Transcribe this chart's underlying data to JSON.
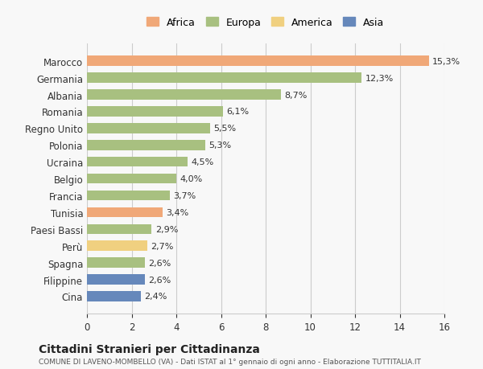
{
  "categories": [
    "Cina",
    "Filippine",
    "Spagna",
    "Perù",
    "Paesi Bassi",
    "Tunisia",
    "Francia",
    "Belgio",
    "Ucraina",
    "Polonia",
    "Regno Unito",
    "Romania",
    "Albania",
    "Germania",
    "Marocco"
  ],
  "values": [
    2.4,
    2.6,
    2.6,
    2.7,
    2.9,
    3.4,
    3.7,
    4.0,
    4.5,
    5.3,
    5.5,
    6.1,
    8.7,
    12.3,
    15.3
  ],
  "labels": [
    "2,4%",
    "2,6%",
    "2,6%",
    "2,7%",
    "2,9%",
    "3,4%",
    "3,7%",
    "4,0%",
    "4,5%",
    "5,3%",
    "5,5%",
    "6,1%",
    "8,7%",
    "12,3%",
    "15,3%"
  ],
  "colors": [
    "#6688bb",
    "#6688bb",
    "#a8c080",
    "#f0d080",
    "#a8c080",
    "#f0a878",
    "#a8c080",
    "#a8c080",
    "#a8c080",
    "#a8c080",
    "#a8c080",
    "#a8c080",
    "#a8c080",
    "#a8c080",
    "#f0a878"
  ],
  "continent": [
    "Asia",
    "Asia",
    "Europa",
    "America",
    "Europa",
    "Africa",
    "Europa",
    "Europa",
    "Europa",
    "Europa",
    "Europa",
    "Europa",
    "Europa",
    "Europa",
    "Africa"
  ],
  "legend_labels": [
    "Africa",
    "Europa",
    "America",
    "Asia"
  ],
  "legend_colors": [
    "#f0a878",
    "#a8c080",
    "#f0d080",
    "#6688bb"
  ],
  "title": "Cittadini Stranieri per Cittadinanza",
  "subtitle": "COMUNE DI LAVENO-MOMBELLO (VA) - Dati ISTAT al 1° gennaio di ogni anno - Elaborazione TUTTITALIA.IT",
  "xlim": [
    0,
    16
  ],
  "xticks": [
    0,
    2,
    4,
    6,
    8,
    10,
    12,
    14,
    16
  ],
  "background_color": "#f8f8f8",
  "bar_height": 0.6,
  "grid_color": "#cccccc"
}
